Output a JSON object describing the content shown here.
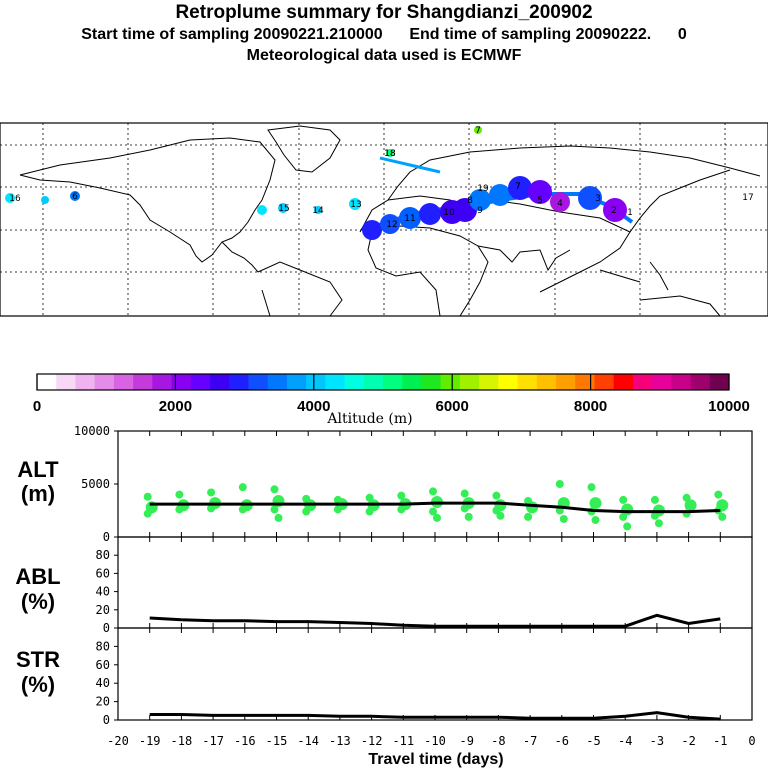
{
  "header": {
    "title": "Retroplume summary for Shangdianzi_200902",
    "sampling": "Start time of sampling 20090221.210000      End time of sampling 20090222.      0",
    "met": "Meteorological data used is ECMWF"
  },
  "colorbar": {
    "label": "Altitude (m)",
    "ticks": [
      "0",
      "2000",
      "4000",
      "6000",
      "8000",
      "10000"
    ],
    "colors": [
      "#ffffff",
      "#f7d9f7",
      "#efb3ef",
      "#e58ce8",
      "#d863e3",
      "#c43bd9",
      "#a817e2",
      "#8a00f2",
      "#6600ff",
      "#3d00f5",
      "#1f1fff",
      "#0f4fff",
      "#0077ff",
      "#00a0ff",
      "#00c5ff",
      "#00e5ff",
      "#00ffe0",
      "#00ffb0",
      "#00ff80",
      "#00f050",
      "#20e820",
      "#60ee00",
      "#a0f000",
      "#d5f500",
      "#ffff00",
      "#ffe000",
      "#ffc000",
      "#ffa000",
      "#ff7800",
      "#ff4000",
      "#ff0000",
      "#f5007a",
      "#e8009a",
      "#c8008a",
      "#a0006e",
      "#700050"
    ]
  },
  "map": {
    "labels": [
      {
        "t": "18",
        "c": "#00e5ff"
      },
      {
        "t": "16",
        "c": "#00ccff"
      },
      {
        "t": "6",
        "c": "#0077ff"
      },
      {
        "t": "17",
        "c": "#00e5ff"
      },
      {
        "t": "15",
        "c": "#00ccff"
      },
      {
        "t": "14",
        "c": "#00ccff"
      },
      {
        "t": "13",
        "c": "#00e5ff"
      },
      {
        "t": "12",
        "c": "#0060ff"
      },
      {
        "t": "11",
        "c": "#1f1fff"
      },
      {
        "t": "10",
        "c": "#3d00f5"
      },
      {
        "t": "9",
        "c": "#8a00f2"
      },
      {
        "t": "19",
        "c": "#0077ff"
      },
      {
        "t": "8",
        "c": "#6600ff"
      },
      {
        "t": "7",
        "c": "#0077ff"
      },
      {
        "t": "5",
        "c": "#a817e2"
      },
      {
        "t": "4",
        "c": "#a817e2"
      },
      {
        "t": "3",
        "c": "#8a00f2"
      },
      {
        "t": "2",
        "c": "#0f4fff"
      },
      {
        "t": "1",
        "c": "#8a00f2"
      },
      {
        "t": "7",
        "c": "#60ee00"
      },
      {
        "t": "18",
        "c": "#00ff80"
      }
    ]
  },
  "panels": {
    "alt": {
      "label1": "ALT",
      "label2": "(m)"
    },
    "abl": {
      "label1": "ABL",
      "label2": "(%)"
    },
    "str": {
      "label1": "STR",
      "label2": "(%)"
    }
  },
  "chart_data": [
    {
      "type": "line",
      "title": "ALT (m)",
      "x": [
        -19,
        -18,
        -17,
        -16,
        -15,
        -14,
        -13,
        -12,
        -11,
        -10,
        -9,
        -8,
        -7,
        -6,
        -5,
        -4,
        -3,
        -2,
        -1
      ],
      "values": [
        3100,
        3100,
        3100,
        3100,
        3100,
        3100,
        3100,
        3100,
        3100,
        3200,
        3200,
        3200,
        3000,
        2800,
        2500,
        2400,
        2400,
        2400,
        2500
      ],
      "scatter": [
        [
          3800,
          2800,
          2200
        ],
        [
          4000,
          3000,
          2600
        ],
        [
          4200,
          3200,
          2700
        ],
        [
          4700,
          3000,
          2600
        ],
        [
          4500,
          3400,
          2600,
          1800
        ],
        [
          3600,
          3000,
          2400
        ],
        [
          3500,
          3100,
          2600
        ],
        [
          3700,
          3000,
          2400
        ],
        [
          3900,
          3100,
          2600
        ],
        [
          4300,
          3300,
          2400,
          1800
        ],
        [
          4100,
          3200,
          2700,
          1900
        ],
        [
          3900,
          3000,
          2500,
          2000
        ],
        [
          3400,
          2800,
          1900
        ],
        [
          5000,
          3200,
          2500,
          1700
        ],
        [
          4700,
          3200,
          2400,
          1600
        ],
        [
          3500,
          2600,
          1900,
          1000
        ],
        [
          3500,
          2500,
          2000,
          1300
        ],
        [
          3700,
          3000,
          2200
        ],
        [
          4000,
          3000,
          2500,
          1900
        ]
      ],
      "xlim": [
        -20,
        0
      ],
      "ylim": [
        0,
        10000
      ],
      "yticks": [
        "0",
        "5000",
        "10000"
      ]
    },
    {
      "type": "line",
      "title": "ABL (%)",
      "x": [
        -19,
        -18,
        -17,
        -16,
        -15,
        -14,
        -13,
        -12,
        -11,
        -10,
        -9,
        -8,
        -7,
        -6,
        -5,
        -4,
        -3,
        -2,
        -1
      ],
      "values": [
        11,
        9,
        8,
        8,
        7,
        7,
        6,
        5,
        3,
        2,
        2,
        2,
        2,
        2,
        2,
        2,
        14,
        5,
        10
      ],
      "xlim": [
        -20,
        0
      ],
      "ylim": [
        0,
        100
      ],
      "yticks": [
        "0",
        "20",
        "40",
        "60",
        "80"
      ]
    },
    {
      "type": "line",
      "title": "STR (%)",
      "x": [
        -19,
        -18,
        -17,
        -16,
        -15,
        -14,
        -13,
        -12,
        -11,
        -10,
        -9,
        -8,
        -7,
        -6,
        -5,
        -4,
        -3,
        -2,
        -1
      ],
      "values": [
        6,
        6,
        5,
        5,
        5,
        5,
        4,
        4,
        3,
        3,
        3,
        3,
        2,
        2,
        2,
        4,
        8,
        3,
        1
      ],
      "xlim": [
        -20,
        0
      ],
      "ylim": [
        0,
        100
      ],
      "yticks": [
        "0",
        "20",
        "40",
        "60",
        "80"
      ],
      "xlabel": "Travel time (days)",
      "xticks": [
        "-20",
        "-19",
        "-18",
        "-17",
        "-16",
        "-15",
        "-14",
        "-13",
        "-12",
        "-11",
        "-10",
        "-9",
        "-8",
        "-7",
        "-6",
        "-5",
        "-4",
        "-3",
        "-2",
        "-1",
        "0"
      ]
    }
  ]
}
